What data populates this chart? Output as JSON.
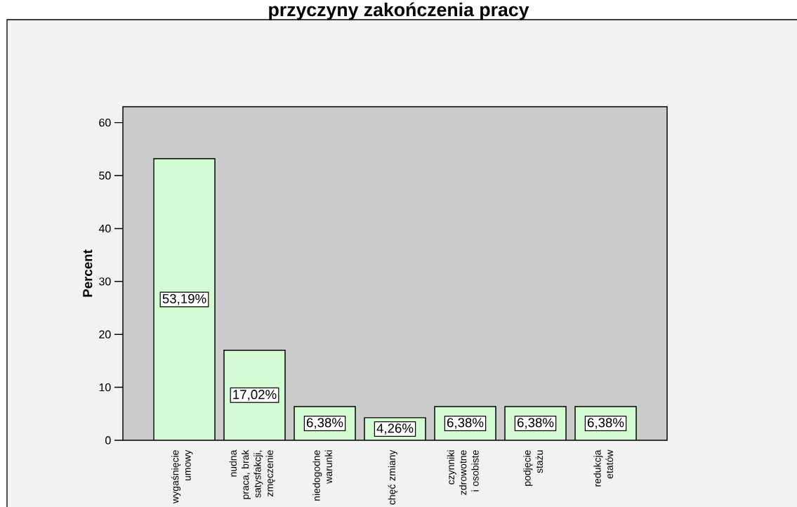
{
  "chart_data": {
    "type": "bar",
    "title": "przyczyny zakończenia pracy",
    "ylabel": "Percent",
    "categories": [
      "wygaśnięcie umowy",
      "nudna praca, brak satysfakcji, zmęczenie",
      "niedogodne warunki",
      "chęć zmiany",
      "czynniki zdrowotne i osobiste",
      "podjęcie stażu",
      "redukcja etatów"
    ],
    "values": [
      53.19,
      17.02,
      6.38,
      4.26,
      6.38,
      6.38,
      6.38
    ],
    "value_labels": [
      "53,19%",
      "17,02%",
      "6,38%",
      "4,26%",
      "6,38%",
      "6,38%",
      "6,38%"
    ],
    "color": "#d4fcd4",
    "ylim": [
      0,
      63
    ],
    "yticks": [
      0,
      10,
      20,
      30,
      40,
      50,
      60
    ]
  }
}
